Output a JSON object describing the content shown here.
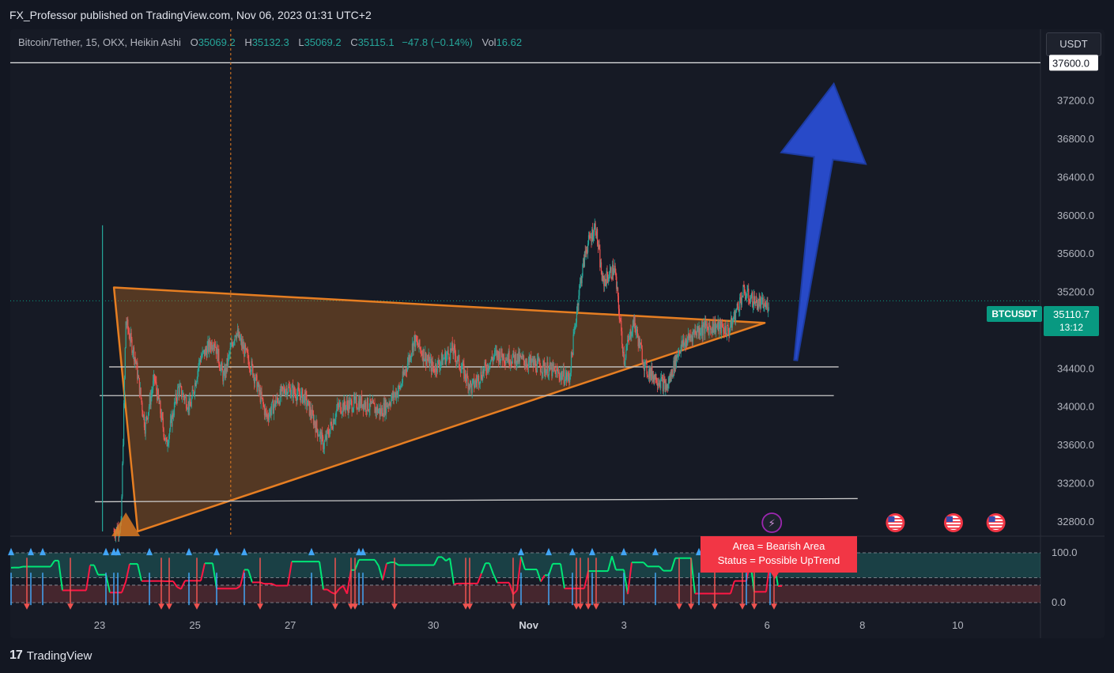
{
  "header": {
    "published": "FX_Professor published on TradingView.com, Nov 06, 2023 01:31 UTC+2"
  },
  "legend": {
    "symbol": "Bitcoin/Tether, 15, OKX, Heikin Ashi",
    "o_label": "O",
    "o_value": "35069.2",
    "h_label": "H",
    "h_value": "35132.3",
    "l_label": "L",
    "l_value": "35069.2",
    "c_label": "C",
    "c_value": "35115.1",
    "change": "−47.8 (−0.14%)",
    "vol_label": "Vol",
    "vol_value": "16.62"
  },
  "currency_button": "USDT",
  "price_badge": {
    "symbol": "BTCUSDT",
    "price": "35110.7",
    "countdown": "13:12"
  },
  "indicator_status": {
    "line1": "Area = Bearish Area",
    "line2": "Status =  Possible UpTrend"
  },
  "footer": {
    "logo": "17",
    "brand": "TradingView"
  },
  "colors": {
    "up": "#26a69a",
    "down": "#ef5350",
    "triangle": "#e67e22",
    "arrow": "#2a4fd6",
    "badge": "#089981",
    "status_bg": "#f23645"
  },
  "chart_data": {
    "type": "candlestick",
    "style": "Heikin Ashi",
    "symbol": "Bitcoin/Tether",
    "interval": "15",
    "exchange": "OKX",
    "y_axis": {
      "ticks": [
        "32800.0",
        "33200.0",
        "33600.0",
        "34000.0",
        "34400.0",
        "34800.0",
        "35200.0",
        "35600.0",
        "36000.0",
        "36400.0",
        "36800.0",
        "37200.0"
      ],
      "highlighted_level": "37600.0",
      "ylim": [
        32650,
        37950
      ]
    },
    "x_axis": {
      "ticks": [
        "23",
        "25",
        "27",
        "30",
        "Nov",
        "3",
        "6",
        "8",
        "10"
      ],
      "tick_day_index": [
        0,
        2,
        4,
        7,
        9,
        11,
        14,
        16,
        18
      ]
    },
    "price_path": [
      {
        "day": 0.3,
        "price": 32700
      },
      {
        "day": 0.45,
        "price": 32750
      },
      {
        "day": 0.55,
        "price": 34900
      },
      {
        "day": 0.75,
        "price": 34500
      },
      {
        "day": 0.95,
        "price": 33800
      },
      {
        "day": 1.15,
        "price": 34300
      },
      {
        "day": 1.4,
        "price": 33600
      },
      {
        "day": 1.65,
        "price": 34200
      },
      {
        "day": 1.9,
        "price": 34000
      },
      {
        "day": 2.1,
        "price": 34500
      },
      {
        "day": 2.4,
        "price": 34700
      },
      {
        "day": 2.6,
        "price": 34300
      },
      {
        "day": 2.85,
        "price": 34800
      },
      {
        "day": 3.2,
        "price": 34400
      },
      {
        "day": 3.5,
        "price": 33900
      },
      {
        "day": 3.9,
        "price": 34200
      },
      {
        "day": 4.3,
        "price": 34100
      },
      {
        "day": 4.7,
        "price": 33600
      },
      {
        "day": 5.0,
        "price": 34000
      },
      {
        "day": 5.5,
        "price": 34050
      },
      {
        "day": 5.9,
        "price": 33950
      },
      {
        "day": 6.3,
        "price": 34200
      },
      {
        "day": 6.6,
        "price": 34700
      },
      {
        "day": 7.0,
        "price": 34400
      },
      {
        "day": 7.4,
        "price": 34600
      },
      {
        "day": 7.8,
        "price": 34200
      },
      {
        "day": 8.3,
        "price": 34550
      },
      {
        "day": 8.8,
        "price": 34500
      },
      {
        "day": 9.4,
        "price": 34400
      },
      {
        "day": 9.85,
        "price": 34300
      },
      {
        "day": 10.05,
        "price": 35200
      },
      {
        "day": 10.2,
        "price": 35650
      },
      {
        "day": 10.4,
        "price": 35900
      },
      {
        "day": 10.55,
        "price": 35300
      },
      {
        "day": 10.8,
        "price": 35450
      },
      {
        "day": 11.0,
        "price": 34500
      },
      {
        "day": 11.2,
        "price": 34900
      },
      {
        "day": 11.45,
        "price": 34400
      },
      {
        "day": 11.7,
        "price": 34300
      },
      {
        "day": 11.9,
        "price": 34200
      },
      {
        "day": 12.15,
        "price": 34600
      },
      {
        "day": 12.5,
        "price": 34800
      },
      {
        "day": 12.9,
        "price": 34850
      },
      {
        "day": 13.2,
        "price": 34800
      },
      {
        "day": 13.5,
        "price": 35200
      },
      {
        "day": 13.75,
        "price": 35100
      },
      {
        "day": 14.0,
        "price": 35050
      },
      {
        "day": 14.05,
        "price": 35115
      }
    ],
    "annotations": {
      "triangle": [
        {
          "day": 0.3,
          "price": 35250
        },
        {
          "day": 13.95,
          "price": 34880
        },
        {
          "day": 0.8,
          "price": 32700
        }
      ],
      "support_lines": [
        {
          "from_day": 0.2,
          "to_day": 15.5,
          "price": 34420
        },
        {
          "from_day": 0.0,
          "to_day": 15.4,
          "price": 34120
        },
        {
          "from_day": -0.1,
          "to_day": 15.9,
          "price": 33010
        }
      ],
      "projection_arrow": {
        "from_day": 14.6,
        "from_price": 34490,
        "to_day": 15.4,
        "to_price": 37380
      },
      "vertical_marker_day": 2.75
    },
    "indicator": {
      "y_ticks": [
        "100.0",
        "0.0"
      ],
      "ylim": [
        0,
        100
      ],
      "overbought": 100,
      "upper": 50,
      "lower": 35,
      "oversold": 0
    }
  }
}
